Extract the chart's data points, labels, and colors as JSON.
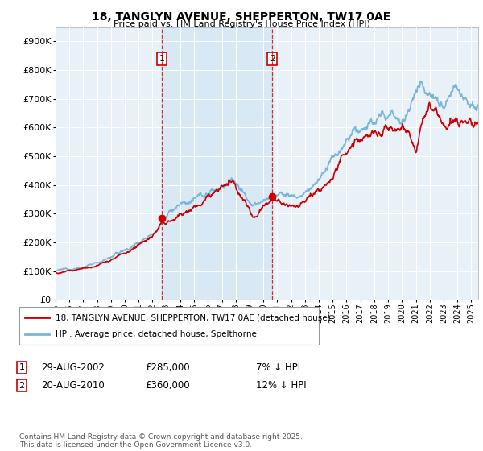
{
  "title": "18, TANGLYN AVENUE, SHEPPERTON, TW17 0AE",
  "subtitle": "Price paid vs. HM Land Registry's House Price Index (HPI)",
  "legend_line1": "18, TANGLYN AVENUE, SHEPPERTON, TW17 0AE (detached house)",
  "legend_line2": "HPI: Average price, detached house, Spelthorne",
  "footer": "Contains HM Land Registry data © Crown copyright and database right 2025.\nThis data is licensed under the Open Government Licence v3.0.",
  "sale1_date": "29-AUG-2002",
  "sale1_price": "£285,000",
  "sale1_hpi": "7% ↓ HPI",
  "sale2_date": "20-AUG-2010",
  "sale2_price": "£360,000",
  "sale2_hpi": "12% ↓ HPI",
  "hpi_color": "#7ab5d8",
  "price_color": "#cc0000",
  "vline_color": "#cc0000",
  "shade_color": "#d6e8f5",
  "background_color": "#e8f0f8",
  "ylim": [
    0,
    950000
  ],
  "yticks": [
    0,
    100000,
    200000,
    300000,
    400000,
    500000,
    600000,
    700000,
    800000,
    900000
  ],
  "sale1_x": 2002.66,
  "sale2_x": 2010.64,
  "sale1_price_val": 285000,
  "sale2_price_val": 360000,
  "xmin": 1995,
  "xmax": 2025.5
}
